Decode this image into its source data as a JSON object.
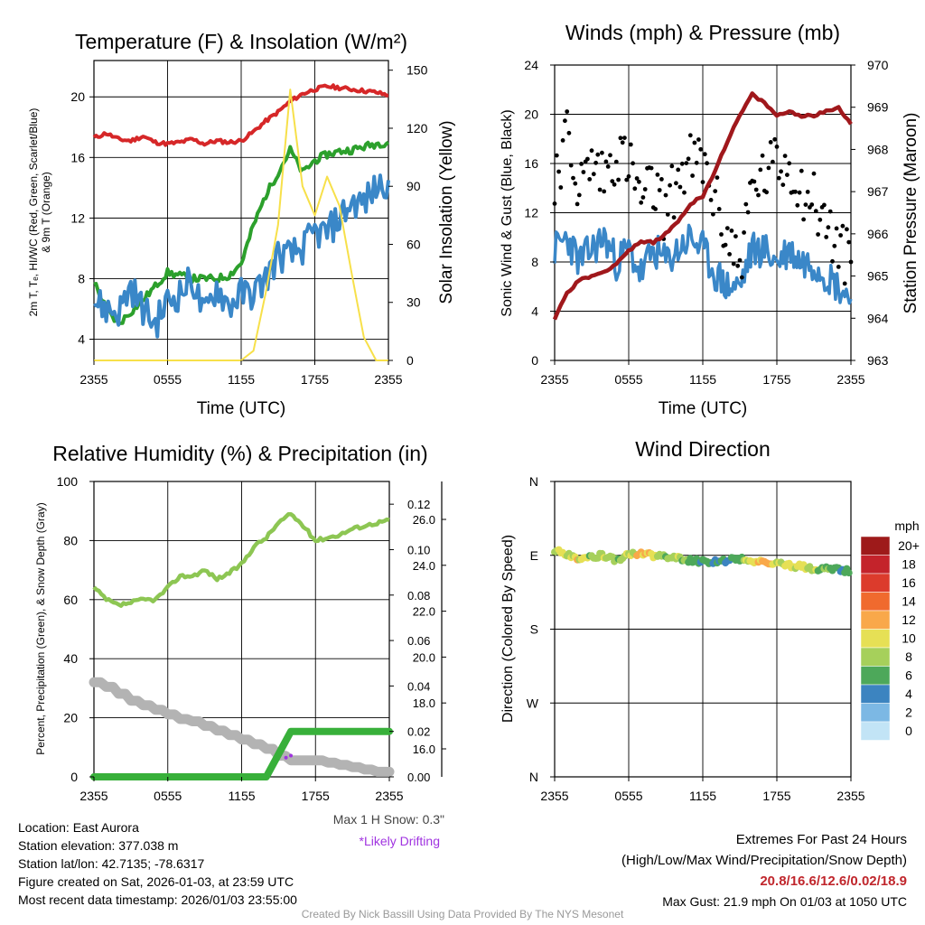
{
  "time_ticks": [
    "2355",
    "0555",
    "1155",
    "1755",
    "2355"
  ],
  "xlabel": "Time (UTC)",
  "panels": {
    "temperature": {
      "title": "Temperature (F) & Insolation (W/m²)",
      "left_label_line1": "2m T, Tₑ, HI/WC (Red, Green, Scarlet/Blue)",
      "left_label_line2": "& 9m T (Orange)",
      "right_label": "Solar Insolation (Yellow)"
    },
    "winds": {
      "title": "Winds (mph) & Pressure (mb)",
      "left_label": "Sonic Wind & Gust (Blue, Black)",
      "right_label": "Station Pressure (Maroon)"
    },
    "humidity": {
      "title": "Relative Humidity (%) & Precipitation (in)",
      "left_label": "Percent, Precipitation (Green), & Snow Depth (Gray)",
      "max_snow": "Max 1 H Snow: 0.3\"",
      "drifting": "*Likely Drifting"
    },
    "direction": {
      "title": "Wind Direction",
      "left_label": "Direction (Colored By Speed)",
      "dir_ticks": [
        "N",
        "W",
        "S",
        "E",
        "N"
      ],
      "legend_title": "mph",
      "legend_labels": [
        "20+",
        "18",
        "16",
        "14",
        "12",
        "10",
        "8",
        "6",
        "4",
        "2",
        "0"
      ],
      "legend_colors": [
        "#9e1a1a",
        "#c4232b",
        "#dc3b2c",
        "#f06a2e",
        "#f9a84a",
        "#e6e055",
        "#a6d05b",
        "#4da85a",
        "#3c84c0",
        "#7cb8e4",
        "#c2e4f6"
      ]
    }
  },
  "station": {
    "location": "Location: East Aurora",
    "elevation": "Station elevation: 377.038 m",
    "latlon": "Station lat/lon: 42.7135; -78.6317",
    "created": "Figure created on Sat, 2026-01-03, at 23:59 UTC",
    "recent": "Most recent data timestamp: 2026/01/03 23:55:00"
  },
  "extremes": {
    "title": "Extremes For Past 24 Hours",
    "subtitle": "(High/Low/Max Wind/Precipitation/Snow Depth)",
    "values": "20.8/16.6/12.6/0.02/18.9",
    "max_gust": "Max Gust: 21.9 mph On 01/03 at 1050 UTC"
  },
  "credit": "Created By Nick Bassill Using Data Provided By The NYS Mesonet",
  "chart_data": [
    {
      "type": "line",
      "title": "Temperature (F) & Insolation (W/m2)",
      "xlabel": "Time (UTC)",
      "x": [
        0,
        1,
        2,
        3,
        4,
        5,
        6,
        7,
        8,
        9,
        10,
        11,
        12,
        13,
        14,
        15,
        16,
        17,
        18,
        19,
        20,
        21,
        22,
        23,
        24
      ],
      "x_tick_labels": [
        "2355",
        "0555",
        "1155",
        "1755",
        "2355"
      ],
      "ylim": [
        2.6,
        22.4
      ],
      "y_ticks": [
        4,
        8,
        12,
        16,
        20
      ],
      "y2lim": [
        0,
        155
      ],
      "y2_ticks": [
        0,
        30,
        60,
        90,
        120,
        150
      ],
      "y2label": "Solar Insolation (Yellow)",
      "series": [
        {
          "name": "2m Temperature",
          "color": "#d62728",
          "axis": "left",
          "values": [
            17.3,
            17.6,
            17.2,
            17.1,
            17.4,
            17.0,
            16.9,
            17.0,
            17.2,
            16.9,
            17.1,
            17.0,
            17.1,
            17.7,
            18.4,
            19.0,
            19.7,
            20.2,
            20.5,
            20.7,
            20.6,
            20.5,
            20.4,
            20.3,
            20.1
          ]
        },
        {
          "name": "Dewpoint",
          "color": "#2ca02c",
          "axis": "left",
          "values": [
            7.8,
            6.0,
            5.0,
            5.8,
            6.6,
            7.5,
            8.4,
            8.2,
            8.0,
            8.0,
            8.0,
            8.2,
            9.0,
            11.5,
            13.5,
            15.0,
            16.5,
            15.0,
            15.8,
            16.2,
            16.4,
            16.5,
            16.7,
            16.9,
            17.0
          ]
        },
        {
          "name": "Wind Chill",
          "color": "#3a87c8",
          "axis": "left",
          "values": [
            6.5,
            6.0,
            5.8,
            7.5,
            6.0,
            5.0,
            6.5,
            7.0,
            8.0,
            5.5,
            7.5,
            6.2,
            7.0,
            7.0,
            8.0,
            9.5,
            9.5,
            10.0,
            11.0,
            11.0,
            12.0,
            13.0,
            13.0,
            14.0,
            14.5
          ]
        },
        {
          "name": "Solar Insolation",
          "color": "#f7e04a",
          "axis": "right",
          "values": [
            0,
            0,
            0,
            0,
            0,
            0,
            0,
            0,
            0,
            0,
            0,
            0,
            0,
            5,
            35,
            70,
            140,
            90,
            75,
            95,
            80,
            45,
            12,
            0,
            0
          ]
        }
      ]
    },
    {
      "type": "line",
      "title": "Winds (mph) & Pressure (mb)",
      "xlabel": "Time (UTC)",
      "x": [
        0,
        1,
        2,
        3,
        4,
        5,
        6,
        7,
        8,
        9,
        10,
        11,
        12,
        13,
        14,
        15,
        16,
        17,
        18,
        19,
        20,
        21,
        22,
        23,
        24
      ],
      "x_tick_labels": [
        "2355",
        "0555",
        "1155",
        "1755",
        "2355"
      ],
      "ylim": [
        0,
        24
      ],
      "y_ticks": [
        0,
        4,
        8,
        12,
        16,
        20,
        24
      ],
      "y2lim": [
        963,
        970
      ],
      "y2_ticks": [
        963,
        964,
        965,
        966,
        967,
        968,
        969,
        970
      ],
      "y2label": "Station Pressure (Maroon)",
      "series": [
        {
          "name": "Sonic Wind",
          "color": "#3a87c8",
          "axis": "left",
          "values": [
            9,
            10,
            8,
            9,
            10,
            8,
            9,
            7,
            9,
            8,
            9,
            10,
            9,
            7,
            6,
            6,
            9,
            9,
            8,
            9,
            8,
            8,
            7,
            6,
            5
          ]
        },
        {
          "name": "Wind Gust",
          "color": "#000000",
          "axis": "left",
          "values": [
            15,
            18,
            14,
            16,
            15,
            17,
            16,
            13,
            14,
            12,
            15,
            16,
            16,
            13,
            10,
            8,
            14,
            15,
            16,
            16,
            14,
            13,
            11,
            9,
            8
          ]
        },
        {
          "name": "Station Pressure",
          "color": "#a0181c",
          "axis": "right",
          "values": [
            964.0,
            964.6,
            964.9,
            965.0,
            965.1,
            965.3,
            965.6,
            965.8,
            965.8,
            966.0,
            966.3,
            966.7,
            966.9,
            967.5,
            968.2,
            968.8,
            969.3,
            969.1,
            968.8,
            968.9,
            968.8,
            968.8,
            968.9,
            969.0,
            968.6
          ]
        }
      ]
    },
    {
      "type": "line",
      "title": "Relative Humidity (%) & Precipitation (in)",
      "xlabel": "",
      "x": [
        0,
        1,
        2,
        3,
        4,
        5,
        6,
        7,
        8,
        9,
        10,
        11,
        12,
        13,
        14,
        15,
        16,
        17,
        18,
        19,
        20,
        21,
        22,
        23,
        24
      ],
      "x_tick_labels": [
        "2355",
        "0555",
        "1155",
        "1755",
        "2355"
      ],
      "ylim": [
        0,
        100
      ],
      "y_ticks": [
        0,
        20,
        40,
        60,
        80,
        100
      ],
      "y2_precip_ticks": [
        "0.00",
        "0.02",
        "0.04",
        "0.06",
        "0.08",
        "0.10",
        "0.12"
      ],
      "y3_snow_ticks": [
        "16.0",
        "18.0",
        "20.0",
        "22.0",
        "24.0",
        "26.0"
      ],
      "series": [
        {
          "name": "Relative Humidity",
          "color": "#8dc653",
          "axis": "left",
          "values": [
            64,
            60,
            58,
            59,
            60,
            60,
            64,
            68,
            68,
            70,
            67,
            69,
            72,
            78,
            81,
            86,
            89,
            85,
            80,
            81,
            82,
            84,
            85,
            86,
            87
          ]
        },
        {
          "name": "Precipitation",
          "color": "#38b03a",
          "axis": "precip",
          "values": [
            0,
            0,
            0,
            0,
            0,
            0,
            0,
            0,
            0,
            0,
            0,
            0,
            0,
            0,
            0,
            0.01,
            0.02,
            0.02,
            0.02,
            0.02,
            0.02,
            0.02,
            0.02,
            0.02,
            0.02
          ]
        },
        {
          "name": "Snow Depth",
          "color": "#b3b3b3",
          "axis": "snow",
          "values": [
            18.9,
            18.7,
            18.4,
            18.1,
            17.9,
            17.7,
            17.5,
            17.3,
            17.2,
            17.0,
            16.8,
            16.6,
            16.4,
            16.2,
            16.0,
            15.7,
            15.5,
            15.5,
            15.5,
            15.4,
            15.3,
            15.2,
            15.1,
            15.0,
            15.0
          ]
        }
      ]
    },
    {
      "type": "scatter",
      "title": "Wind Direction",
      "ylabel": "Direction (Colored By Speed)",
      "y_tick_labels": [
        "N",
        "W",
        "S",
        "E",
        "N"
      ],
      "x": [
        0,
        1,
        2,
        3,
        4,
        5,
        6,
        7,
        8,
        9,
        10,
        11,
        12,
        13,
        14,
        15,
        16,
        17,
        18,
        19,
        20,
        21,
        22,
        23,
        24
      ],
      "x_tick_labels": [
        "2355",
        "0555",
        "1155",
        "1755",
        "2355"
      ],
      "direction_deg": [
        275,
        272,
        266,
        268,
        270,
        264,
        270,
        273,
        270,
        268,
        266,
        264,
        262,
        262,
        264,
        266,
        262,
        262,
        260,
        258,
        256,
        254,
        254,
        252,
        250
      ],
      "speed_mph": [
        10,
        9,
        10,
        8,
        9,
        6,
        9,
        11,
        10,
        8,
        9,
        6,
        6,
        5,
        4,
        6,
        10,
        12,
        10,
        9,
        10,
        8,
        7,
        6,
        5
      ]
    }
  ]
}
